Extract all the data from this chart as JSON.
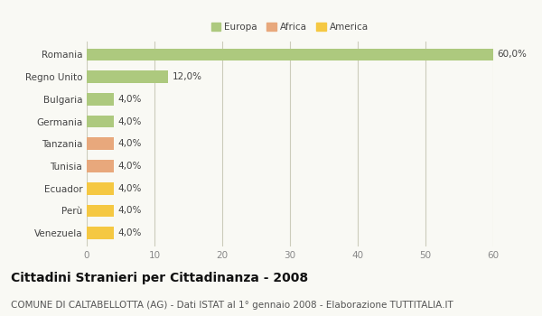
{
  "categories": [
    "Romania",
    "Regno Unito",
    "Bulgaria",
    "Germania",
    "Tanzania",
    "Tunisia",
    "Ecuador",
    "Perù",
    "Venezuela"
  ],
  "values": [
    60.0,
    12.0,
    4.0,
    4.0,
    4.0,
    4.0,
    4.0,
    4.0,
    4.0
  ],
  "labels": [
    "60,0%",
    "12,0%",
    "4,0%",
    "4,0%",
    "4,0%",
    "4,0%",
    "4,0%",
    "4,0%",
    "4,0%"
  ],
  "colors": [
    "#adc97e",
    "#adc97e",
    "#adc97e",
    "#adc97e",
    "#e8a87c",
    "#e8a87c",
    "#f5c842",
    "#f5c842",
    "#f5c842"
  ],
  "legend": [
    {
      "label": "Europa",
      "color": "#adc97e"
    },
    {
      "label": "Africa",
      "color": "#e8a87c"
    },
    {
      "label": "America",
      "color": "#f5c842"
    }
  ],
  "xlim": [
    0,
    60
  ],
  "xticks": [
    0,
    10,
    20,
    30,
    40,
    50,
    60
  ],
  "title": "Cittadini Stranieri per Cittadinanza - 2008",
  "subtitle": "COMUNE DI CALTABELLOTTA (AG) - Dati ISTAT al 1° gennaio 2008 - Elaborazione TUTTITALIA.IT",
  "bg_color": "#f9f9f4",
  "grid_color": "#ccccbb",
  "title_fontsize": 10,
  "subtitle_fontsize": 7.5,
  "label_fontsize": 7.5,
  "tick_fontsize": 7.5,
  "bar_height": 0.55
}
